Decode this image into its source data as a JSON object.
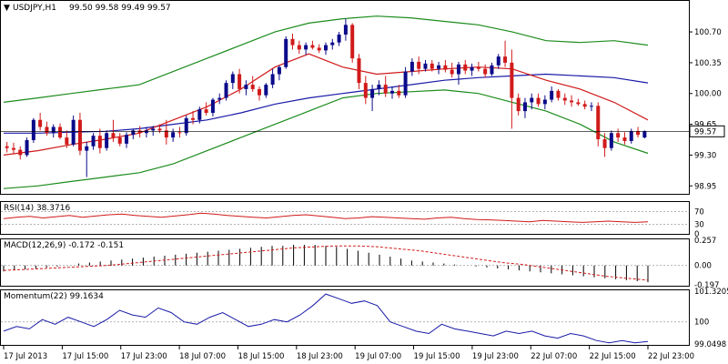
{
  "header": {
    "symbol": "USDJPY,H1",
    "ohlc": "99.50 99.58 99.49 99.57"
  },
  "colors": {
    "bull": "#0a0a8a",
    "bear": "#d11a1a",
    "bollinger": "#1c8c1c",
    "ma_fast": "#d11a1a",
    "ma_slow": "#1a1aa8",
    "price_marker_bg": "#ffffff",
    "price_line": "#000000"
  },
  "panels": {
    "rsi": {
      "label": "RSI(14) 38.3716",
      "ticks": [
        "70",
        "30",
        "0"
      ]
    },
    "macd": {
      "label": "MACD(12,26,9) -0.172 -0.151",
      "ticks": [
        "0.257",
        "0.00",
        "-0.197"
      ]
    },
    "momentum": {
      "label": "Momentum(22) 99.1634",
      "ticks": [
        "101.3205",
        "100",
        "99.0498"
      ]
    }
  },
  "chart_data": [
    {
      "type": "candlestick",
      "title": "USDJPY,H1",
      "price_axis_ticks": [
        "100.70",
        "100.35",
        "100.00",
        "99.65",
        "99.30",
        "98.95"
      ],
      "ylim": [
        98.87,
        100.98
      ],
      "current_price": "99.57",
      "x_labels": [
        "17 Jul 2013",
        "17 Jul 15:00",
        "17 Jul 23:00",
        "18 Jul 07:00",
        "18 Jul 15:00",
        "18 Jul 23:00",
        "19 Jul 07:00",
        "19 Jul 15:00",
        "19 Jul 23:00",
        "22 Jul 07:00",
        "22 Jul 15:00",
        "22 Jul 23:00"
      ],
      "ohlc": [
        [
          99.4,
          99.45,
          99.33,
          99.38
        ],
        [
          99.38,
          99.44,
          99.32,
          99.36
        ],
        [
          99.36,
          99.4,
          99.25,
          99.3
        ],
        [
          99.3,
          99.5,
          99.28,
          99.47
        ],
        [
          99.47,
          99.72,
          99.44,
          99.7
        ],
        [
          99.7,
          99.78,
          99.58,
          99.62
        ],
        [
          99.62,
          99.68,
          99.52,
          99.55
        ],
        [
          99.55,
          99.65,
          99.5,
          99.62
        ],
        [
          99.62,
          99.66,
          99.48,
          99.5
        ],
        [
          99.5,
          99.58,
          99.38,
          99.42
        ],
        [
          99.42,
          99.75,
          99.4,
          99.7
        ],
        [
          99.7,
          99.78,
          99.3,
          99.35
        ],
        [
          99.35,
          99.45,
          99.05,
          99.4
        ],
        [
          99.4,
          99.55,
          99.36,
          99.52
        ],
        [
          99.52,
          99.6,
          99.32,
          99.38
        ],
        [
          99.38,
          99.58,
          99.35,
          99.55
        ],
        [
          99.55,
          99.7,
          99.45,
          99.5
        ],
        [
          99.5,
          99.55,
          99.4,
          99.43
        ],
        [
          99.43,
          99.56,
          99.38,
          99.53
        ],
        [
          99.53,
          99.6,
          99.48,
          99.58
        ],
        [
          99.58,
          99.63,
          99.5,
          99.55
        ],
        [
          99.55,
          99.62,
          99.5,
          99.58
        ],
        [
          99.58,
          99.63,
          99.52,
          99.6
        ],
        [
          99.6,
          99.65,
          99.55,
          99.58
        ],
        [
          99.58,
          99.7,
          99.42,
          99.5
        ],
        [
          99.5,
          99.6,
          99.45,
          99.56
        ],
        [
          99.56,
          99.62,
          99.5,
          99.55
        ],
        [
          99.55,
          99.75,
          99.52,
          99.72
        ],
        [
          99.72,
          99.8,
          99.65,
          99.7
        ],
        [
          99.7,
          99.85,
          99.66,
          99.82
        ],
        [
          99.82,
          99.9,
          99.75,
          99.78
        ],
        [
          99.78,
          99.95,
          99.74,
          99.93
        ],
        [
          99.93,
          100.0,
          99.88,
          99.95
        ],
        [
          99.95,
          100.15,
          99.92,
          100.12
        ],
        [
          100.12,
          100.25,
          100.05,
          100.22
        ],
        [
          100.22,
          100.28,
          100.0,
          100.05
        ],
        [
          100.05,
          100.15,
          99.98,
          100.1
        ],
        [
          100.1,
          100.2,
          100.02,
          100.05
        ],
        [
          100.05,
          100.08,
          99.92,
          99.98
        ],
        [
          99.98,
          100.12,
          99.95,
          100.1
        ],
        [
          100.1,
          100.28,
          100.06,
          100.22
        ],
        [
          100.22,
          100.32,
          100.15,
          100.3
        ],
        [
          100.3,
          100.65,
          100.28,
          100.62
        ],
        [
          100.62,
          100.68,
          100.5,
          100.55
        ],
        [
          100.55,
          100.6,
          100.45,
          100.5
        ],
        [
          100.5,
          100.58,
          100.44,
          100.55
        ],
        [
          100.55,
          100.6,
          100.5,
          100.52
        ],
        [
          100.52,
          100.56,
          100.46,
          100.49
        ],
        [
          100.49,
          100.58,
          100.44,
          100.55
        ],
        [
          100.55,
          100.62,
          100.5,
          100.58
        ],
        [
          100.58,
          100.7,
          100.54,
          100.67
        ],
        [
          100.67,
          100.85,
          100.6,
          100.78
        ],
        [
          100.78,
          100.8,
          100.35,
          100.4
        ],
        [
          100.4,
          100.45,
          100.05,
          100.12
        ],
        [
          100.12,
          100.2,
          99.88,
          99.95
        ],
        [
          99.95,
          100.1,
          99.8,
          100.05
        ],
        [
          100.05,
          100.15,
          99.98,
          100.1
        ],
        [
          100.1,
          100.2,
          99.96,
          100.0
        ],
        [
          100.0,
          100.08,
          99.94,
          100.03
        ],
        [
          100.03,
          100.1,
          99.95,
          99.98
        ],
        [
          99.98,
          100.3,
          99.95,
          100.25
        ],
        [
          100.25,
          100.4,
          100.2,
          100.36
        ],
        [
          100.36,
          100.42,
          100.22,
          100.28
        ],
        [
          100.28,
          100.38,
          100.25,
          100.34
        ],
        [
          100.34,
          100.38,
          100.25,
          100.28
        ],
        [
          100.28,
          100.36,
          100.22,
          100.32
        ],
        [
          100.32,
          100.38,
          100.24,
          100.27
        ],
        [
          100.27,
          100.35,
          100.18,
          100.22
        ],
        [
          100.22,
          100.36,
          100.1,
          100.33
        ],
        [
          100.33,
          100.38,
          100.22,
          100.26
        ],
        [
          100.26,
          100.34,
          100.2,
          100.3
        ],
        [
          100.3,
          100.36,
          100.25,
          100.28
        ],
        [
          100.28,
          100.33,
          100.18,
          100.22
        ],
        [
          100.22,
          100.35,
          100.2,
          100.32
        ],
        [
          100.32,
          100.45,
          100.28,
          100.42
        ],
        [
          100.42,
          100.6,
          100.3,
          100.35
        ],
        [
          100.35,
          100.5,
          99.6,
          99.95
        ],
        [
          99.95,
          100.0,
          99.75,
          99.8
        ],
        [
          99.8,
          99.95,
          99.72,
          99.9
        ],
        [
          99.9,
          100.0,
          99.82,
          99.95
        ],
        [
          99.95,
          100.0,
          99.85,
          99.88
        ],
        [
          99.88,
          99.98,
          99.82,
          99.93
        ],
        [
          99.93,
          100.08,
          99.9,
          100.03
        ],
        [
          100.03,
          100.05,
          99.92,
          99.95
        ],
        [
          99.95,
          100.0,
          99.87,
          99.92
        ],
        [
          99.92,
          99.98,
          99.85,
          99.9
        ],
        [
          99.9,
          99.94,
          99.86,
          99.88
        ],
        [
          99.88,
          99.92,
          99.82,
          99.85
        ],
        [
          99.85,
          99.9,
          99.8,
          99.86
        ],
        [
          99.86,
          99.9,
          99.4,
          99.48
        ],
        [
          99.48,
          99.55,
          99.28,
          99.38
        ],
        [
          99.38,
          99.58,
          99.35,
          99.55
        ],
        [
          99.55,
          99.6,
          99.45,
          99.5
        ],
        [
          99.5,
          99.56,
          99.42,
          99.46
        ],
        [
          99.46,
          99.6,
          99.43,
          99.57
        ],
        [
          99.57,
          99.62,
          99.5,
          99.53
        ],
        [
          99.5,
          99.58,
          99.49,
          99.57
        ]
      ],
      "bollinger_upper": [
        99.9,
        99.95,
        100.0,
        100.05,
        100.1,
        100.25,
        100.4,
        100.55,
        100.7,
        100.8,
        100.85,
        100.88,
        100.86,
        100.82,
        100.78,
        100.7,
        100.6,
        100.58,
        100.6,
        100.55
      ],
      "bollinger_lower": [
        98.92,
        98.95,
        99.0,
        99.05,
        99.1,
        99.2,
        99.35,
        99.5,
        99.65,
        99.8,
        99.95,
        100.0,
        100.02,
        100.04,
        100.0,
        99.9,
        99.8,
        99.65,
        99.45,
        99.32
      ],
      "ma_fast": [
        99.3,
        99.35,
        99.42,
        99.48,
        99.55,
        99.7,
        99.85,
        100.05,
        100.3,
        100.45,
        100.3,
        100.22,
        100.25,
        100.28,
        100.3,
        100.28,
        100.15,
        100.05,
        99.9,
        99.7
      ],
      "ma_slow": [
        99.55,
        99.55,
        99.56,
        99.57,
        99.6,
        99.65,
        99.7,
        99.78,
        99.88,
        99.95,
        100.0,
        100.05,
        100.1,
        100.15,
        100.18,
        100.2,
        100.22,
        100.2,
        100.18,
        100.12
      ]
    },
    {
      "type": "line",
      "title": "RSI(14) 38.3716",
      "ylim": [
        0,
        100
      ],
      "values": [
        48,
        52,
        55,
        50,
        54,
        58,
        52,
        56,
        60,
        62,
        58,
        55,
        52,
        56,
        60,
        65,
        62,
        58,
        55,
        52,
        50,
        54,
        58,
        60,
        56,
        52,
        48,
        50,
        54,
        52,
        50,
        48,
        46,
        50,
        52,
        48,
        45,
        44,
        42,
        40,
        38,
        42,
        40,
        38,
        36,
        38,
        40,
        38,
        36,
        38
      ]
    },
    {
      "type": "bar",
      "title": "MACD(12,26,9) -0.172 -0.151",
      "ylim": [
        -0.197,
        0.257
      ],
      "histogram": [
        -0.06,
        -0.05,
        -0.04,
        -0.03,
        -0.02,
        -0.01,
        0.0,
        0.02,
        0.03,
        0.04,
        0.05,
        0.06,
        0.07,
        0.08,
        0.09,
        0.1,
        0.11,
        0.12,
        0.13,
        0.14,
        0.15,
        0.16,
        0.17,
        0.18,
        0.19,
        0.2,
        0.2,
        0.21,
        0.21,
        0.21,
        0.2,
        0.19,
        0.17,
        0.15,
        0.13,
        0.11,
        0.09,
        0.07,
        0.05,
        0.04,
        0.03,
        0.02,
        0.01,
        0.0,
        -0.01,
        -0.02,
        -0.03,
        -0.04,
        -0.05,
        -0.06,
        -0.07,
        -0.08,
        -0.09,
        -0.1,
        -0.11,
        -0.12,
        -0.13,
        -0.14,
        -0.15,
        -0.16,
        -0.17
      ],
      "signal": [
        -0.05,
        -0.04,
        -0.03,
        -0.02,
        -0.01,
        0.0,
        0.02,
        0.04,
        0.06,
        0.08,
        0.1,
        0.12,
        0.14,
        0.16,
        0.18,
        0.19,
        0.2,
        0.2,
        0.19,
        0.17,
        0.15,
        0.12,
        0.09,
        0.06,
        0.03,
        0.01,
        -0.02,
        -0.05,
        -0.08,
        -0.11,
        -0.13,
        -0.15
      ]
    },
    {
      "type": "line",
      "title": "Momentum(22) 99.1634",
      "ylim": [
        99.0498,
        101.3205
      ],
      "values": [
        99.6,
        99.8,
        99.7,
        100.1,
        99.9,
        100.2,
        100.0,
        99.8,
        100.1,
        100.5,
        100.3,
        100.2,
        100.6,
        100.4,
        100.0,
        99.9,
        100.2,
        100.4,
        100.1,
        99.8,
        99.9,
        100.1,
        100.0,
        100.3,
        100.7,
        101.2,
        101.0,
        100.8,
        100.9,
        100.7,
        100.0,
        99.8,
        99.6,
        99.5,
        99.9,
        99.7,
        99.6,
        99.5,
        99.4,
        99.6,
        99.5,
        99.6,
        99.4,
        99.3,
        99.5,
        99.4,
        99.2,
        99.1,
        99.2,
        99.1,
        99.16
      ]
    }
  ]
}
